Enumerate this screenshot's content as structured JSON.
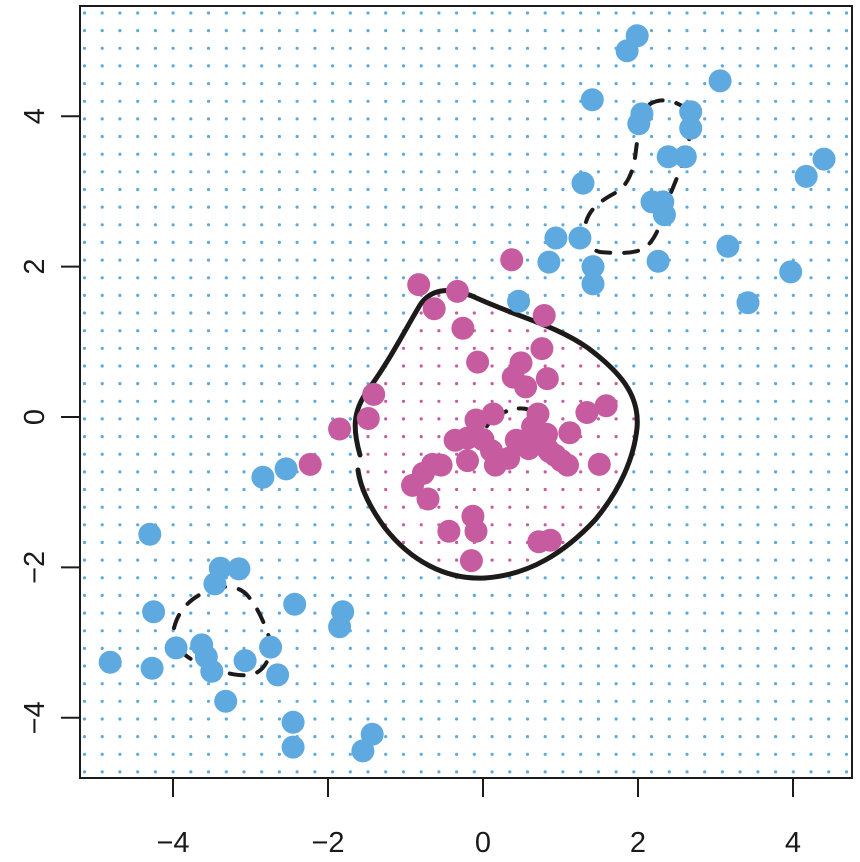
{
  "chart_data": {
    "type": "scatter",
    "title": "",
    "xlabel": "",
    "ylabel": "",
    "xlim": [
      -5.2,
      4.75
    ],
    "ylim": [
      -4.8,
      5.5
    ],
    "xticks": [
      -4,
      -2,
      0,
      2,
      4
    ],
    "yticks": [
      -4,
      -2,
      0,
      2,
      4
    ],
    "xtick_labels": [
      "−4",
      "−2",
      "0",
      "2",
      "4"
    ],
    "ytick_labels": [
      "−4",
      "−2",
      "0",
      "2",
      "4"
    ],
    "grid": "dotted background grid showing predicted class region (blue outside solid boundary, magenta inside)",
    "colors": {
      "blue": "#5DA9E0",
      "magenta": "#C75BA0",
      "boundary": "#1d1a1a"
    },
    "grid_spec": {
      "x0": -5.15,
      "y0": 5.37,
      "step_x": 0.2285,
      "step_y": 0.2345,
      "nx": 44,
      "ny": 44
    },
    "series": [
      {
        "name": "Class blue",
        "color": "#5DA9E0",
        "points": [
          [
            1.99,
            5.07
          ],
          [
            1.86,
            4.87
          ],
          [
            1.41,
            4.22
          ],
          [
            3.06,
            4.47
          ],
          [
            2.68,
            4.06
          ],
          [
            2.05,
            4.03
          ],
          [
            2.01,
            3.9
          ],
          [
            2.68,
            3.84
          ],
          [
            2.39,
            3.46
          ],
          [
            2.61,
            3.46
          ],
          [
            1.29,
            3.11
          ],
          [
            2.18,
            2.86
          ],
          [
            2.32,
            2.86
          ],
          [
            2.34,
            2.69
          ],
          [
            4.4,
            3.43
          ],
          [
            4.17,
            3.2
          ],
          [
            0.94,
            2.38
          ],
          [
            1.25,
            2.38
          ],
          [
            0.85,
            2.06
          ],
          [
            2.26,
            2.07
          ],
          [
            3.16,
            2.27
          ],
          [
            1.42,
            2.0
          ],
          [
            1.42,
            1.77
          ],
          [
            3.97,
            1.93
          ],
          [
            3.42,
            1.52
          ],
          [
            0.46,
            1.54
          ],
          [
            -2.84,
            -0.8
          ],
          [
            -2.54,
            -0.69
          ],
          [
            -4.3,
            -1.56
          ],
          [
            -3.39,
            -2.01
          ],
          [
            -3.15,
            -2.02
          ],
          [
            -3.46,
            -2.22
          ],
          [
            -4.25,
            -2.59
          ],
          [
            -2.43,
            -2.49
          ],
          [
            -1.81,
            -2.59
          ],
          [
            -1.85,
            -2.79
          ],
          [
            -3.96,
            -3.07
          ],
          [
            -3.63,
            -3.03
          ],
          [
            -3.57,
            -3.19
          ],
          [
            -3.5,
            -3.38
          ],
          [
            -3.07,
            -3.24
          ],
          [
            -2.74,
            -3.06
          ],
          [
            -2.65,
            -3.43
          ],
          [
            -4.81,
            -3.26
          ],
          [
            -4.27,
            -3.34
          ],
          [
            -3.32,
            -3.78
          ],
          [
            -2.45,
            -4.06
          ],
          [
            -2.45,
            -4.39
          ],
          [
            -1.43,
            -4.22
          ],
          [
            -1.55,
            -4.44
          ]
        ]
      },
      {
        "name": "Class magenta",
        "color": "#C75BA0",
        "points": [
          [
            0.37,
            2.09
          ],
          [
            -0.83,
            1.76
          ],
          [
            -0.33,
            1.67
          ],
          [
            -0.63,
            1.44
          ],
          [
            -0.26,
            1.18
          ],
          [
            0.79,
            1.35
          ],
          [
            -0.07,
            0.73
          ],
          [
            0.49,
            0.72
          ],
          [
            0.76,
            0.91
          ],
          [
            0.39,
            0.53
          ],
          [
            0.55,
            0.4
          ],
          [
            0.83,
            0.51
          ],
          [
            -1.41,
            0.3
          ],
          [
            -1.48,
            -0.02
          ],
          [
            0.13,
            0.04
          ],
          [
            0.71,
            0.04
          ],
          [
            -0.09,
            -0.04
          ],
          [
            1.34,
            0.06
          ],
          [
            1.59,
            0.15
          ],
          [
            0.82,
            -0.23
          ],
          [
            0.64,
            -0.13
          ],
          [
            1.12,
            -0.21
          ],
          [
            0.0,
            -0.3
          ],
          [
            -0.2,
            -0.28
          ],
          [
            0.43,
            -0.31
          ],
          [
            0.72,
            -0.35
          ],
          [
            0.59,
            -0.42
          ],
          [
            -0.2,
            -0.58
          ],
          [
            0.83,
            -0.42
          ],
          [
            0.93,
            -0.51
          ],
          [
            0.33,
            -0.55
          ],
          [
            0.11,
            -0.45
          ],
          [
            0.86,
            -0.46
          ],
          [
            1.01,
            -0.58
          ],
          [
            -0.54,
            -0.64
          ],
          [
            -0.65,
            -0.63
          ],
          [
            -0.36,
            -0.31
          ],
          [
            0.16,
            -0.64
          ],
          [
            1.09,
            -0.64
          ],
          [
            1.5,
            -0.63
          ],
          [
            -0.77,
            -0.75
          ],
          [
            -0.91,
            -0.91
          ],
          [
            -0.71,
            -1.09
          ],
          [
            -0.13,
            -1.32
          ],
          [
            -0.09,
            -1.52
          ],
          [
            -0.44,
            -1.52
          ],
          [
            0.72,
            -1.66
          ],
          [
            0.87,
            -1.64
          ],
          [
            -0.15,
            -1.91
          ],
          [
            -2.23,
            -0.63
          ],
          [
            -1.85,
            -0.16
          ]
        ]
      }
    ],
    "boundaries": [
      {
        "name": "decision boundary",
        "style": "solid",
        "description": "closed curve roughly from x=-1.7 to 2.0, y=-2.15 to 1.72"
      },
      {
        "name": "contour upper-right",
        "style": "dashed",
        "description": "dashed loop around blue cluster near (2.2, 3.2)"
      },
      {
        "name": "contour lower-left",
        "style": "dashed",
        "description": "dashed loop around blue cluster near (-3.4, -3.0)"
      },
      {
        "name": "contour center",
        "style": "dashed",
        "description": "small dashed loop around magenta cluster near (0.3, -0.2)"
      }
    ]
  }
}
